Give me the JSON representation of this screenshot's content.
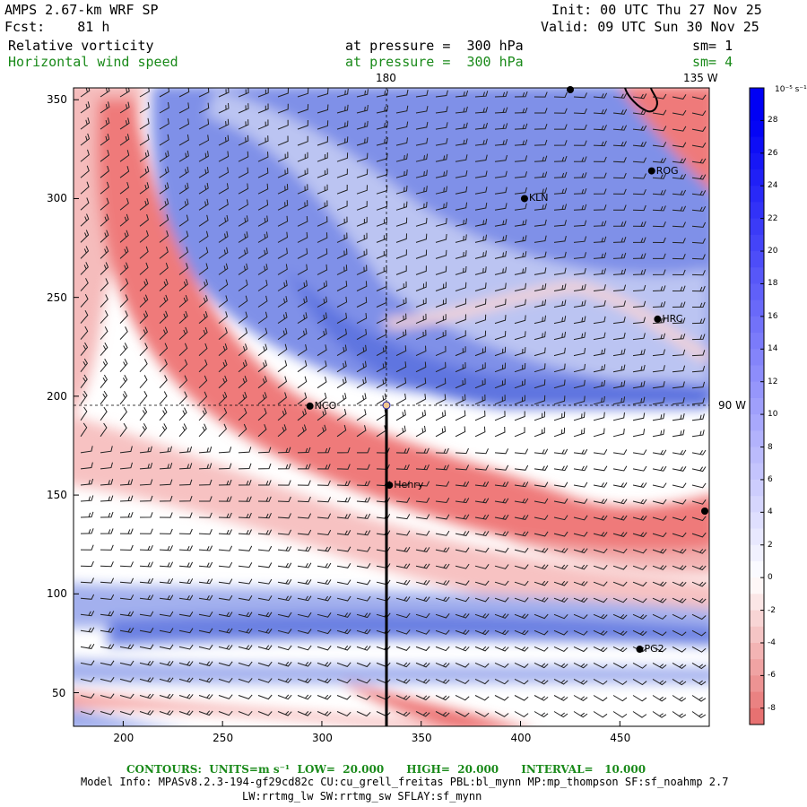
{
  "header": {
    "model": "AMPS 2.67-km WRF SP",
    "fcst": "Fcst:    81 h",
    "init": "Init: 00 UTC Thu 27 Nov 25",
    "valid": "Valid: 09 UTC Sun 30 Nov 25",
    "field1_name": "Relative vorticity",
    "field1_level": "at pressure =  300 hPa",
    "field1_sm": "sm= 1",
    "field2_name": "Horizontal wind speed",
    "field2_level": "at pressure =  300 hPa",
    "field2_sm": "sm= 4"
  },
  "map_labels": {
    "top_180": "180",
    "top_135w": "135 W",
    "right_90w": "90 W"
  },
  "chart_data": {
    "type": "heatmap",
    "x_ticks": [
      200,
      250,
      300,
      350,
      400,
      450
    ],
    "y_ticks": [
      50,
      100,
      150,
      200,
      250,
      300,
      350
    ],
    "xlim": [
      175,
      495
    ],
    "ylim": [
      33,
      356
    ],
    "stations": [
      {
        "name": "KLN",
        "x": 402,
        "y": 300
      },
      {
        "name": "ROG",
        "x": 466,
        "y": 314
      },
      {
        "name": "HRC",
        "x": 469,
        "y": 239
      },
      {
        "name": "NCO",
        "x": 294,
        "y": 195
      },
      {
        "name": "Henry",
        "x": 334,
        "y": 155
      },
      {
        "name": "PG2",
        "x": 460,
        "y": 72
      }
    ],
    "colorbar": {
      "unit": "10⁻⁵ s⁻¹",
      "ticks": [
        28,
        26,
        24,
        22,
        20,
        18,
        16,
        14,
        12,
        10,
        8,
        6,
        4,
        2,
        0,
        -2,
        -4,
        -6,
        -8
      ]
    }
  },
  "footer": {
    "contours": "CONTOURS:  UNITS=m s⁻¹  LOW=  20.000      HIGH=  20.000      INTERVAL=   10.000",
    "model_info": "Model Info: MPASv8.2.3-194-gf29cd82c CU:cu_grell_freitas PBL:bl_mynn MP:mp_thompson SF:sf_noahmp 2.7",
    "model_info2": "LW:rrtmg_lw SW:rrtmg_sw SFLAY:sf_mynn"
  }
}
